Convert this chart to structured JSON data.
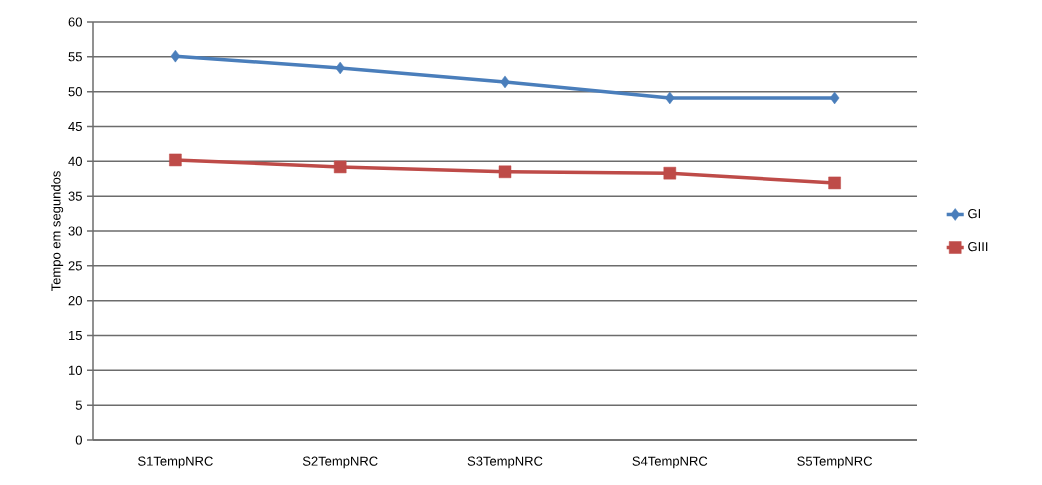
{
  "chart_data": {
    "type": "line",
    "ylabel": "Tempo em segundos",
    "categories": [
      "S1TempNRC",
      "S2TempNRC",
      "S3TempNRC",
      "S4TempNRC",
      "S5TempNRC"
    ],
    "series": [
      {
        "name": "GI",
        "color": "#4a7ebb",
        "marker": "diamond",
        "values": [
          55.1,
          53.4,
          51.4,
          49.1,
          49.1
        ]
      },
      {
        "name": "GIII",
        "color": "#be4b48",
        "marker": "square",
        "values": [
          40.2,
          39.2,
          38.5,
          38.3,
          36.9
        ]
      }
    ],
    "ylim": [
      0,
      60
    ],
    "yticks": [
      0,
      5,
      10,
      15,
      20,
      25,
      30,
      35,
      40,
      45,
      50,
      55,
      60
    ],
    "grid": "y",
    "legend": "right",
    "line_style": "solid"
  }
}
